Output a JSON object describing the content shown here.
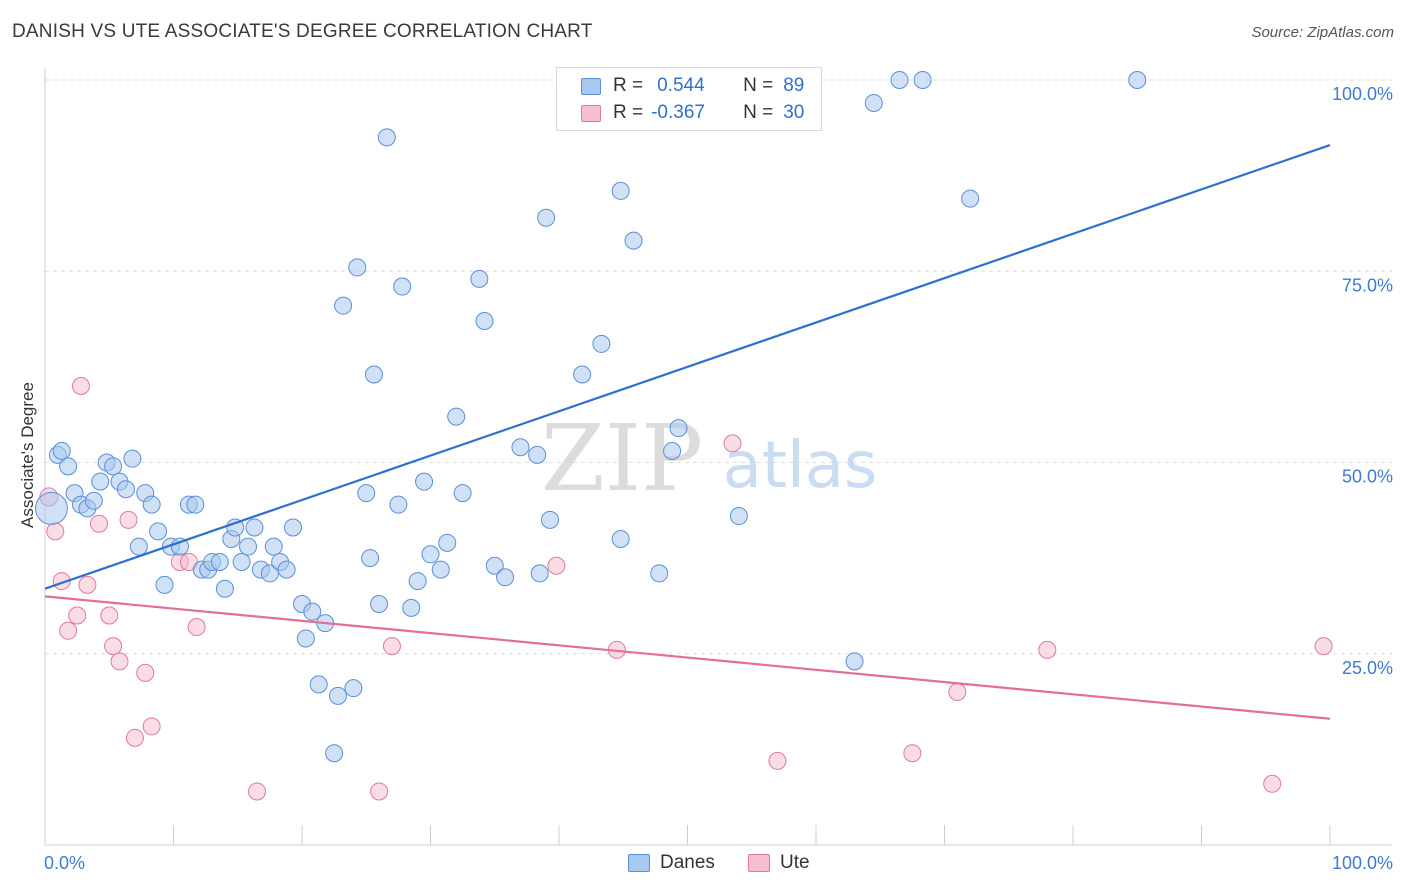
{
  "title": "DANISH VS UTE ASSOCIATE'S DEGREE CORRELATION CHART",
  "source": "Source: ZipAtlas.com",
  "watermark": {
    "zip": "ZIP",
    "atlas": "atlas"
  },
  "legend": {
    "rows": [
      {
        "r_label": "R =",
        "r_value": "0.544",
        "n_label": "N =",
        "n_value": "89",
        "color": "#a9c8ef",
        "border": "#5b8fd6"
      },
      {
        "r_label": "R =",
        "r_value": "-0.367",
        "n_label": "N =",
        "n_value": "30",
        "color": "#f6bfd0",
        "border": "#e07a9c"
      }
    ]
  },
  "bottom_legend": [
    {
      "label": "Danes",
      "color": "#a9c8ef",
      "border": "#5b8fd6"
    },
    {
      "label": "Ute",
      "color": "#f6bfd0",
      "border": "#e07a9c"
    }
  ],
  "chart_data": {
    "type": "scatter",
    "title": "DANISH VS UTE ASSOCIATE'S DEGREE CORRELATION CHART",
    "xlabel": "",
    "ylabel": "Associate's Degree",
    "xlim": [
      0,
      100
    ],
    "ylim": [
      0,
      100
    ],
    "x_tick_labels": [
      "0.0%",
      "100.0%"
    ],
    "y_tick_labels": [
      "25.0%",
      "50.0%",
      "75.0%",
      "100.0%"
    ],
    "y_ticks": [
      25,
      50,
      75,
      100
    ],
    "grid": true,
    "legend_position": "top-center",
    "series": [
      {
        "name": "Danes",
        "color": "#5b8fd6",
        "fill": "#a9c8ef",
        "trend": {
          "x0": 0,
          "y0": 33.5,
          "x1": 100,
          "y1": 91.5,
          "color": "#2f6fce"
        },
        "points": [
          [
            0.5,
            44
          ],
          [
            1,
            51
          ],
          [
            1.3,
            51.5
          ],
          [
            1.8,
            49.5
          ],
          [
            2.3,
            46
          ],
          [
            2.8,
            44.5
          ],
          [
            3.3,
            44
          ],
          [
            3.8,
            45
          ],
          [
            4.3,
            47.5
          ],
          [
            4.8,
            50
          ],
          [
            5.3,
            49.5
          ],
          [
            5.8,
            47.5
          ],
          [
            6.3,
            46.5
          ],
          [
            6.8,
            50.5
          ],
          [
            7.3,
            39
          ],
          [
            7.8,
            46
          ],
          [
            8.3,
            44.5
          ],
          [
            8.8,
            41
          ],
          [
            9.3,
            34
          ],
          [
            9.8,
            39
          ],
          [
            10.5,
            39
          ],
          [
            11.2,
            44.5
          ],
          [
            11.7,
            44.5
          ],
          [
            12.2,
            36
          ],
          [
            12.7,
            36
          ],
          [
            13,
            37
          ],
          [
            13.6,
            37
          ],
          [
            14,
            33.5
          ],
          [
            14.5,
            40
          ],
          [
            14.8,
            41.5
          ],
          [
            15.3,
            37
          ],
          [
            15.8,
            39
          ],
          [
            16.3,
            41.5
          ],
          [
            16.8,
            36
          ],
          [
            17.5,
            35.5
          ],
          [
            17.8,
            39
          ],
          [
            18.3,
            37
          ],
          [
            18.8,
            36
          ],
          [
            19.3,
            41.5
          ],
          [
            20,
            31.5
          ],
          [
            20.3,
            27
          ],
          [
            20.8,
            30.5
          ],
          [
            21.3,
            21
          ],
          [
            21.8,
            29
          ],
          [
            22.5,
            12
          ],
          [
            22.8,
            19.5
          ],
          [
            23.2,
            70.5
          ],
          [
            24,
            20.5
          ],
          [
            24.3,
            75.5
          ],
          [
            25,
            46
          ],
          [
            25.3,
            37.5
          ],
          [
            25.6,
            61.5
          ],
          [
            26,
            31.5
          ],
          [
            26.6,
            92.5
          ],
          [
            27.5,
            44.5
          ],
          [
            27.8,
            73
          ],
          [
            28.5,
            31
          ],
          [
            29,
            34.5
          ],
          [
            29.5,
            47.5
          ],
          [
            30,
            38
          ],
          [
            30.8,
            36
          ],
          [
            31.3,
            39.5
          ],
          [
            32,
            56
          ],
          [
            32.5,
            46
          ],
          [
            33.8,
            74
          ],
          [
            34.2,
            68.5
          ],
          [
            35,
            36.5
          ],
          [
            35.8,
            35
          ],
          [
            37,
            52
          ],
          [
            38.3,
            51
          ],
          [
            38.5,
            35.5
          ],
          [
            39,
            82
          ],
          [
            39.3,
            42.5
          ],
          [
            41.8,
            61.5
          ],
          [
            43.3,
            65.5
          ],
          [
            44.8,
            40
          ],
          [
            44.8,
            85.5
          ],
          [
            45.8,
            79
          ],
          [
            47.8,
            35.5
          ],
          [
            48.8,
            51.5
          ],
          [
            49.3,
            54.5
          ],
          [
            54,
            43
          ],
          [
            58,
            100
          ],
          [
            63,
            24
          ],
          [
            64.5,
            97
          ],
          [
            66.5,
            100
          ],
          [
            68.3,
            100
          ],
          [
            72,
            84.5
          ],
          [
            85,
            100
          ]
        ]
      },
      {
        "name": "Ute",
        "color": "#e07a9c",
        "fill": "#f6bfd0",
        "trend": {
          "x0": 0,
          "y0": 32.5,
          "x1": 100,
          "y1": 16.5,
          "color": "#e36f96"
        },
        "points": [
          [
            0.3,
            45.5
          ],
          [
            0.8,
            41
          ],
          [
            1.3,
            34.5
          ],
          [
            1.8,
            28
          ],
          [
            2.5,
            30
          ],
          [
            2.8,
            60
          ],
          [
            3.3,
            34
          ],
          [
            4.2,
            42
          ],
          [
            5,
            30
          ],
          [
            5.3,
            26
          ],
          [
            5.8,
            24
          ],
          [
            6.5,
            42.5
          ],
          [
            7,
            14
          ],
          [
            7.8,
            22.5
          ],
          [
            8.3,
            15.5
          ],
          [
            10.5,
            37
          ],
          [
            11.2,
            37
          ],
          [
            11.8,
            28.5
          ],
          [
            16.5,
            7
          ],
          [
            26,
            7
          ],
          [
            27,
            26
          ],
          [
            39.8,
            36.5
          ],
          [
            44.5,
            25.5
          ],
          [
            53.5,
            52.5
          ],
          [
            57,
            11
          ],
          [
            67.5,
            12
          ],
          [
            71,
            20
          ],
          [
            78,
            25.5
          ],
          [
            95.5,
            8
          ],
          [
            99.5,
            26
          ]
        ]
      }
    ]
  }
}
